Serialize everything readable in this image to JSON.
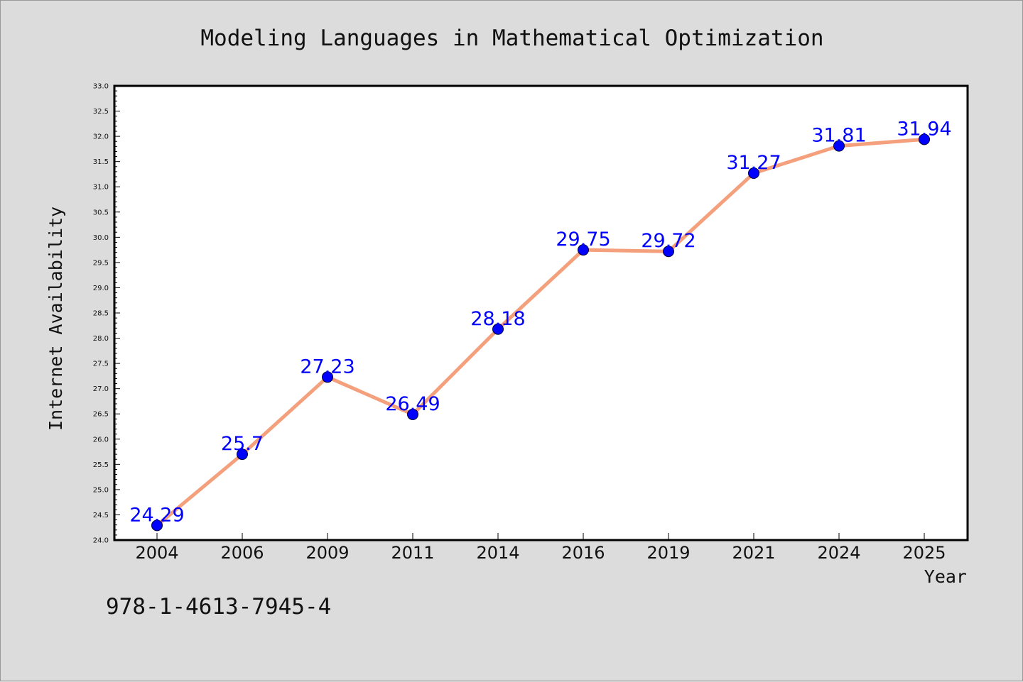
{
  "chart_data": {
    "type": "line",
    "title": "Modeling Languages in Mathematical Optimization",
    "xlabel": "Year",
    "ylabel": "Internet Availability",
    "categories": [
      "2004",
      "2006",
      "2009",
      "2011",
      "2014",
      "2016",
      "2019",
      "2021",
      "2024",
      "2025"
    ],
    "values": [
      24.29,
      25.7,
      27.23,
      26.49,
      28.18,
      29.75,
      29.72,
      31.27,
      31.81,
      31.94
    ],
    "data_labels": [
      "24.29",
      "25.7",
      "27.23",
      "26.49",
      "28.18",
      "29.75",
      "29.72",
      "31.27",
      "31.81",
      "31.94"
    ],
    "ylim": [
      24.0,
      33.0
    ],
    "ytick_labels": [
      "24.0",
      "24.5",
      "25.0",
      "25.5",
      "26.0",
      "26.5",
      "27.0",
      "27.5",
      "28.0",
      "28.5",
      "29.0",
      "29.5",
      "30.0",
      "30.5",
      "31.0",
      "31.5",
      "32.0",
      "32.5",
      "33.0"
    ],
    "grid": false,
    "legend": "none",
    "colors": {
      "line": "#f4a07c",
      "marker": "#0000ff",
      "label": "#0000ff",
      "background": "#dcdcdc",
      "plot_area": "#ffffff"
    }
  },
  "footer": {
    "isbn": "978-1-4613-7945-4"
  }
}
